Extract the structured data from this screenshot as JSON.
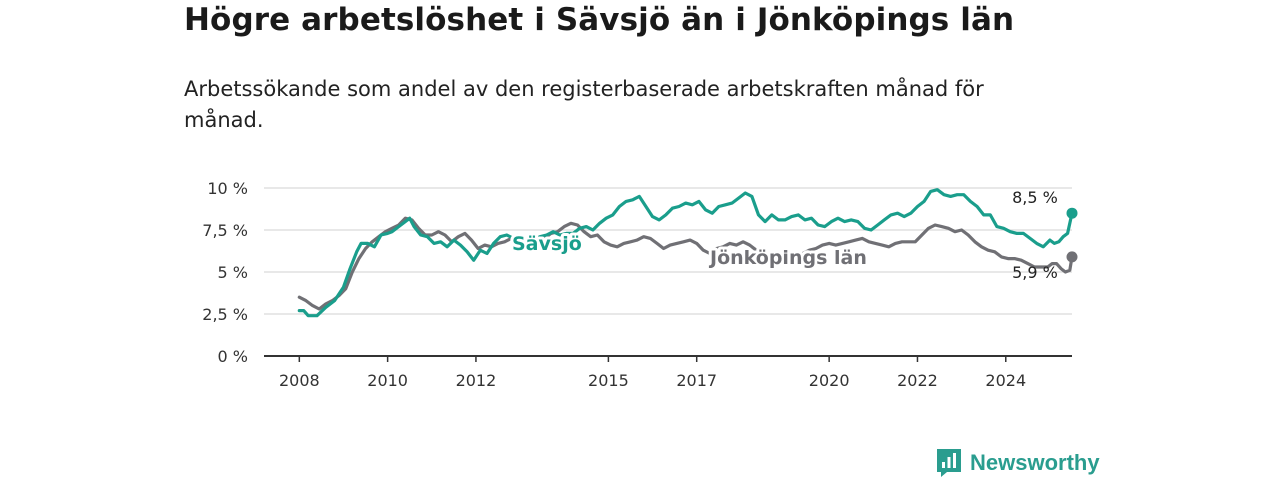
{
  "header": {
    "title": "Högre arbetslöshet i Sävsjö än i Jönköpings län",
    "subtitle": "Arbetssökande som andel av den registerbaserade arbetskraften månad för månad."
  },
  "brand": {
    "name": "Newsworthy",
    "color": "#2a9d8f"
  },
  "chart_data": {
    "type": "line",
    "title": "Högre arbetslöshet i Sävsjö än i Jönköpings län",
    "subtitle": "Arbetssökande som andel av den registerbaserade arbetskraften månad för månad.",
    "xlabel": "",
    "ylabel": "",
    "x_range": [
      2007.2,
      2025.5
    ],
    "ylim": [
      0,
      10
    ],
    "y_ticks": [
      {
        "value": 0,
        "label": "0 %"
      },
      {
        "value": 2.5,
        "label": "2,5 %"
      },
      {
        "value": 5,
        "label": "5 %"
      },
      {
        "value": 7.5,
        "label": "7,5 %"
      },
      {
        "value": 10,
        "label": "10 %"
      }
    ],
    "x_ticks": [
      {
        "value": 2008,
        "label": "2008"
      },
      {
        "value": 2010,
        "label": "2010"
      },
      {
        "value": 2012,
        "label": "2012"
      },
      {
        "value": 2015,
        "label": "2015"
      },
      {
        "value": 2017,
        "label": "2017"
      },
      {
        "value": 2020,
        "label": "2020"
      },
      {
        "value": 2022,
        "label": "2022"
      },
      {
        "value": 2024,
        "label": "2024"
      }
    ],
    "grid": true,
    "series": [
      {
        "name": "Sävsjö",
        "color": "#1a9e8c",
        "end_label": "8,5 %",
        "points": [
          [
            2008.0,
            2.7
          ],
          [
            2008.1,
            2.7
          ],
          [
            2008.2,
            2.4
          ],
          [
            2008.4,
            2.4
          ],
          [
            2008.6,
            2.9
          ],
          [
            2008.8,
            3.3
          ],
          [
            2009.0,
            4.1
          ],
          [
            2009.15,
            5.2
          ],
          [
            2009.3,
            6.2
          ],
          [
            2009.4,
            6.7
          ],
          [
            2009.55,
            6.7
          ],
          [
            2009.7,
            6.5
          ],
          [
            2009.85,
            7.2
          ],
          [
            2010.0,
            7.3
          ],
          [
            2010.1,
            7.4
          ],
          [
            2010.25,
            7.7
          ],
          [
            2010.4,
            8.0
          ],
          [
            2010.5,
            8.2
          ],
          [
            2010.6,
            7.7
          ],
          [
            2010.75,
            7.2
          ],
          [
            2010.9,
            7.1
          ],
          [
            2011.05,
            6.7
          ],
          [
            2011.2,
            6.8
          ],
          [
            2011.35,
            6.5
          ],
          [
            2011.5,
            6.9
          ],
          [
            2011.65,
            6.6
          ],
          [
            2011.8,
            6.2
          ],
          [
            2011.95,
            5.7
          ],
          [
            2012.1,
            6.3
          ],
          [
            2012.25,
            6.1
          ],
          [
            2012.4,
            6.7
          ],
          [
            2012.55,
            7.1
          ],
          [
            2012.7,
            7.2
          ],
          [
            2012.85,
            7.0
          ],
          [
            2013.0,
            6.4
          ],
          [
            2013.15,
            6.7
          ],
          [
            2013.3,
            6.9
          ],
          [
            2013.45,
            7.1
          ],
          [
            2013.6,
            7.2
          ],
          [
            2013.75,
            7.4
          ],
          [
            2013.9,
            7.2
          ],
          [
            2014.05,
            7.3
          ],
          [
            2014.2,
            7.3
          ],
          [
            2014.35,
            7.6
          ],
          [
            2014.5,
            7.7
          ],
          [
            2014.65,
            7.5
          ],
          [
            2014.8,
            7.9
          ],
          [
            2014.95,
            8.2
          ],
          [
            2015.1,
            8.4
          ],
          [
            2015.25,
            8.9
          ],
          [
            2015.4,
            9.2
          ],
          [
            2015.55,
            9.3
          ],
          [
            2015.7,
            9.5
          ],
          [
            2015.85,
            8.9
          ],
          [
            2016.0,
            8.3
          ],
          [
            2016.15,
            8.1
          ],
          [
            2016.3,
            8.4
          ],
          [
            2016.45,
            8.8
          ],
          [
            2016.6,
            8.9
          ],
          [
            2016.75,
            9.1
          ],
          [
            2016.9,
            9.0
          ],
          [
            2017.05,
            9.2
          ],
          [
            2017.2,
            8.7
          ],
          [
            2017.35,
            8.5
          ],
          [
            2017.5,
            8.9
          ],
          [
            2017.65,
            9.0
          ],
          [
            2017.8,
            9.1
          ],
          [
            2017.95,
            9.4
          ],
          [
            2018.1,
            9.7
          ],
          [
            2018.25,
            9.5
          ],
          [
            2018.4,
            8.4
          ],
          [
            2018.55,
            8.0
          ],
          [
            2018.7,
            8.4
          ],
          [
            2018.85,
            8.1
          ],
          [
            2019.0,
            8.1
          ],
          [
            2019.15,
            8.3
          ],
          [
            2019.3,
            8.4
          ],
          [
            2019.45,
            8.1
          ],
          [
            2019.6,
            8.2
          ],
          [
            2019.75,
            7.8
          ],
          [
            2019.9,
            7.7
          ],
          [
            2020.05,
            8.0
          ],
          [
            2020.2,
            8.2
          ],
          [
            2020.35,
            8.0
          ],
          [
            2020.5,
            8.1
          ],
          [
            2020.65,
            8.0
          ],
          [
            2020.8,
            7.6
          ],
          [
            2020.95,
            7.5
          ],
          [
            2021.1,
            7.8
          ],
          [
            2021.25,
            8.1
          ],
          [
            2021.4,
            8.4
          ],
          [
            2021.55,
            8.5
          ],
          [
            2021.7,
            8.3
          ],
          [
            2021.85,
            8.5
          ],
          [
            2022.0,
            8.9
          ],
          [
            2022.15,
            9.2
          ],
          [
            2022.3,
            9.8
          ],
          [
            2022.45,
            9.9
          ],
          [
            2022.6,
            9.6
          ],
          [
            2022.75,
            9.5
          ],
          [
            2022.9,
            9.6
          ],
          [
            2023.05,
            9.6
          ],
          [
            2023.2,
            9.2
          ],
          [
            2023.35,
            8.9
          ],
          [
            2023.5,
            8.4
          ],
          [
            2023.65,
            8.4
          ],
          [
            2023.8,
            7.7
          ],
          [
            2023.95,
            7.6
          ],
          [
            2024.1,
            7.4
          ],
          [
            2024.25,
            7.3
          ],
          [
            2024.4,
            7.3
          ],
          [
            2024.55,
            7.0
          ],
          [
            2024.7,
            6.7
          ],
          [
            2024.85,
            6.5
          ],
          [
            2025.0,
            6.9
          ],
          [
            2025.1,
            6.7
          ],
          [
            2025.2,
            6.8
          ],
          [
            2025.3,
            7.1
          ],
          [
            2025.4,
            7.3
          ]
        ],
        "end_point": [
          2025.5,
          8.5
        ]
      },
      {
        "name": "Jönköpings län",
        "color": "#707075",
        "end_label": "5,9 %",
        "points": [
          [
            2008.0,
            3.5
          ],
          [
            2008.15,
            3.3
          ],
          [
            2008.3,
            3.0
          ],
          [
            2008.45,
            2.8
          ],
          [
            2008.6,
            3.1
          ],
          [
            2008.75,
            3.3
          ],
          [
            2008.9,
            3.6
          ],
          [
            2009.05,
            4.0
          ],
          [
            2009.2,
            5.0
          ],
          [
            2009.35,
            5.8
          ],
          [
            2009.5,
            6.4
          ],
          [
            2009.65,
            6.8
          ],
          [
            2009.8,
            7.1
          ],
          [
            2009.95,
            7.4
          ],
          [
            2010.1,
            7.6
          ],
          [
            2010.25,
            7.8
          ],
          [
            2010.4,
            8.2
          ],
          [
            2010.55,
            8.1
          ],
          [
            2010.7,
            7.6
          ],
          [
            2010.85,
            7.2
          ],
          [
            2011.0,
            7.2
          ],
          [
            2011.15,
            7.4
          ],
          [
            2011.3,
            7.2
          ],
          [
            2011.45,
            6.8
          ],
          [
            2011.6,
            7.1
          ],
          [
            2011.75,
            7.3
          ],
          [
            2011.9,
            6.9
          ],
          [
            2012.05,
            6.4
          ],
          [
            2012.2,
            6.6
          ],
          [
            2012.35,
            6.5
          ],
          [
            2012.5,
            6.7
          ],
          [
            2012.65,
            6.8
          ],
          [
            2012.8,
            7.0
          ],
          [
            2012.95,
            7.2
          ],
          [
            2013.1,
            6.9
          ],
          [
            2013.25,
            6.6
          ],
          [
            2013.4,
            6.7
          ],
          [
            2013.55,
            7.0
          ],
          [
            2013.7,
            7.3
          ],
          [
            2013.85,
            7.4
          ],
          [
            2014.0,
            7.7
          ],
          [
            2014.15,
            7.9
          ],
          [
            2014.3,
            7.8
          ],
          [
            2014.45,
            7.4
          ],
          [
            2014.6,
            7.1
          ],
          [
            2014.75,
            7.2
          ],
          [
            2014.9,
            6.8
          ],
          [
            2015.05,
            6.6
          ],
          [
            2015.2,
            6.5
          ],
          [
            2015.35,
            6.7
          ],
          [
            2015.5,
            6.8
          ],
          [
            2015.65,
            6.9
          ],
          [
            2015.8,
            7.1
          ],
          [
            2015.95,
            7.0
          ],
          [
            2016.1,
            6.7
          ],
          [
            2016.25,
            6.4
          ],
          [
            2016.4,
            6.6
          ],
          [
            2016.55,
            6.7
          ],
          [
            2016.7,
            6.8
          ],
          [
            2016.85,
            6.9
          ],
          [
            2017.0,
            6.7
          ],
          [
            2017.15,
            6.3
          ],
          [
            2017.3,
            6.1
          ],
          [
            2017.45,
            6.4
          ],
          [
            2017.6,
            6.5
          ],
          [
            2017.75,
            6.7
          ],
          [
            2017.9,
            6.6
          ],
          [
            2018.05,
            6.8
          ],
          [
            2018.2,
            6.6
          ],
          [
            2018.35,
            6.3
          ],
          [
            2018.5,
            6.1
          ],
          [
            2018.65,
            6.0
          ],
          [
            2018.8,
            6.0
          ],
          [
            2018.95,
            5.8
          ],
          [
            2019.1,
            5.8
          ],
          [
            2019.25,
            5.9
          ],
          [
            2019.4,
            6.1
          ],
          [
            2019.55,
            6.3
          ],
          [
            2019.7,
            6.4
          ],
          [
            2019.85,
            6.6
          ],
          [
            2020.0,
            6.7
          ],
          [
            2020.15,
            6.6
          ],
          [
            2020.3,
            6.7
          ],
          [
            2020.45,
            6.8
          ],
          [
            2020.6,
            6.9
          ],
          [
            2020.75,
            7.0
          ],
          [
            2020.9,
            6.8
          ],
          [
            2021.05,
            6.7
          ],
          [
            2021.2,
            6.6
          ],
          [
            2021.35,
            6.5
          ],
          [
            2021.5,
            6.7
          ],
          [
            2021.65,
            6.8
          ],
          [
            2021.8,
            6.8
          ],
          [
            2021.95,
            6.8
          ],
          [
            2022.1,
            7.2
          ],
          [
            2022.25,
            7.6
          ],
          [
            2022.4,
            7.8
          ],
          [
            2022.55,
            7.7
          ],
          [
            2022.7,
            7.6
          ],
          [
            2022.85,
            7.4
          ],
          [
            2023.0,
            7.5
          ],
          [
            2023.15,
            7.2
          ],
          [
            2023.3,
            6.8
          ],
          [
            2023.45,
            6.5
          ],
          [
            2023.6,
            6.3
          ],
          [
            2023.75,
            6.2
          ],
          [
            2023.9,
            5.9
          ],
          [
            2024.05,
            5.8
          ],
          [
            2024.2,
            5.8
          ],
          [
            2024.35,
            5.7
          ],
          [
            2024.5,
            5.5
          ],
          [
            2024.65,
            5.3
          ],
          [
            2024.8,
            5.3
          ],
          [
            2024.95,
            5.3
          ],
          [
            2025.05,
            5.5
          ],
          [
            2025.15,
            5.5
          ],
          [
            2025.25,
            5.2
          ],
          [
            2025.35,
            5.0
          ],
          [
            2025.45,
            5.1
          ]
        ],
        "end_point": [
          2025.5,
          5.9
        ]
      }
    ]
  }
}
